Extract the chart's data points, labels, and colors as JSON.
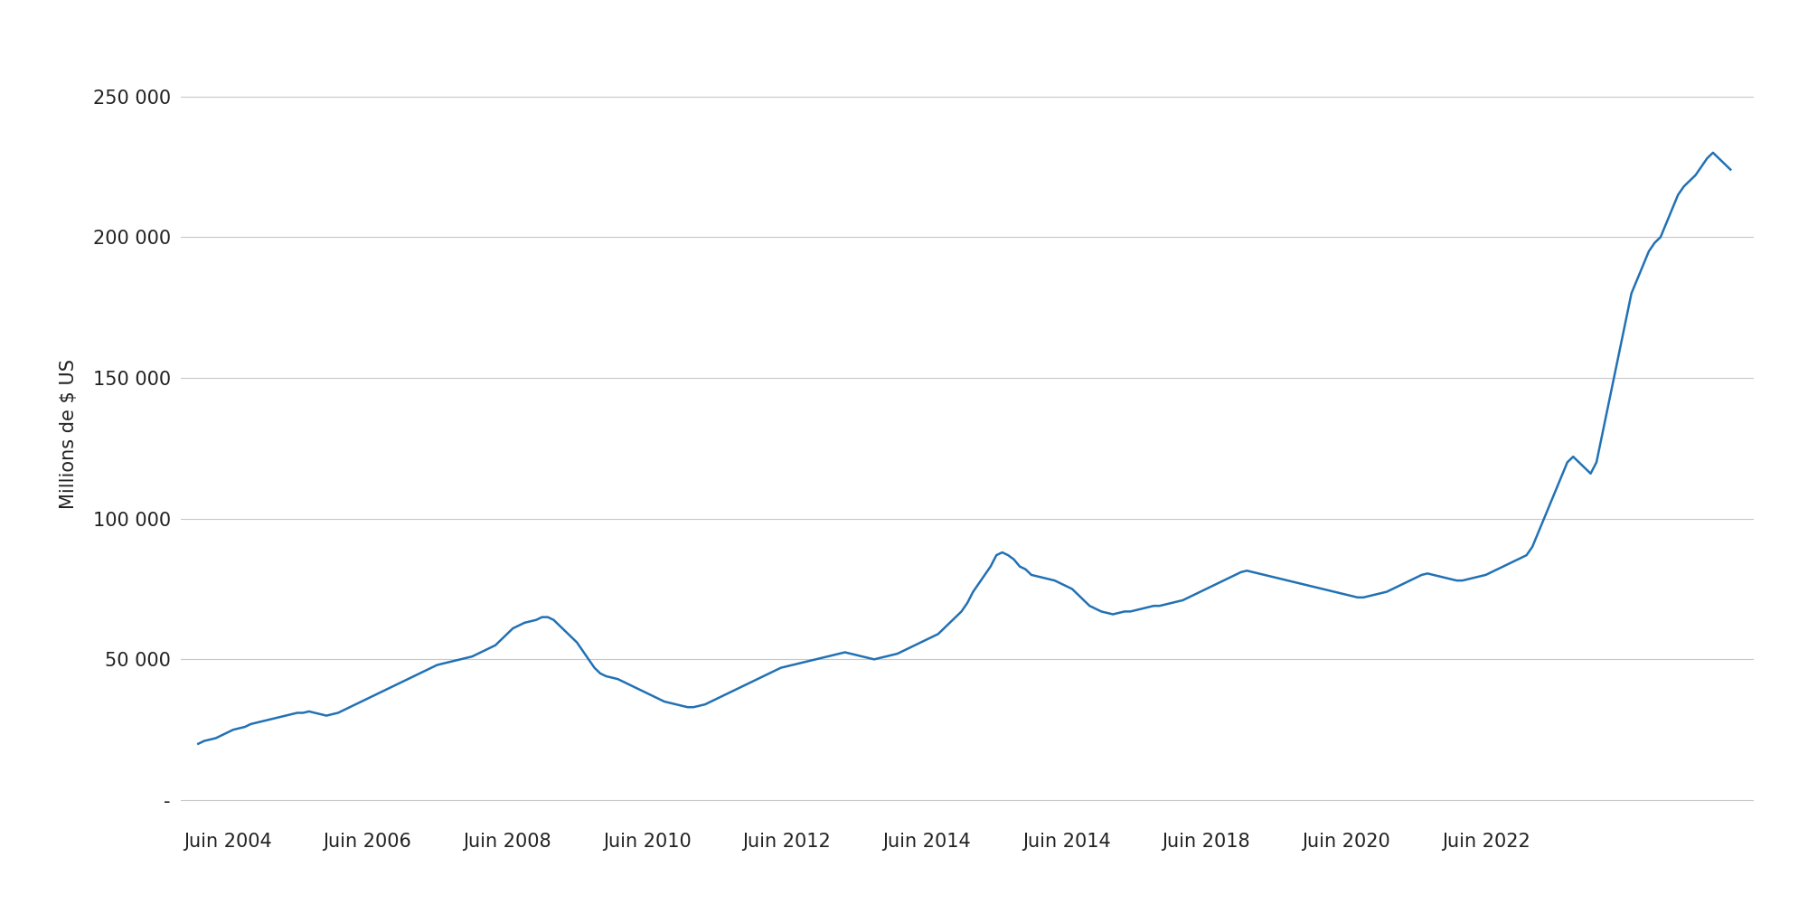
{
  "ylabel": "Millions de $ US",
  "line_color": "#2171b5",
  "background_color": "#ffffff",
  "grid_color": "#c8c8c8",
  "yticks": [
    0,
    50000,
    100000,
    150000,
    200000,
    250000
  ],
  "ytick_labels": [
    "-",
    "50 000",
    "100 000",
    "150 000",
    "200 000",
    "250 000"
  ],
  "ylim": [
    -8000,
    268000
  ],
  "ylabel_fontsize": 15,
  "tick_fontsize": 15,
  "values": [
    20000,
    21000,
    21500,
    22000,
    23000,
    24000,
    25000,
    25500,
    26000,
    27000,
    27500,
    28000,
    28500,
    29000,
    29500,
    30000,
    30500,
    31000,
    31000,
    31500,
    31000,
    30500,
    30000,
    30500,
    31000,
    32000,
    33000,
    34000,
    35000,
    36000,
    37000,
    38000,
    39000,
    40000,
    41000,
    42000,
    43000,
    44000,
    45000,
    46000,
    47000,
    48000,
    48500,
    49000,
    49500,
    50000,
    50500,
    51000,
    52000,
    53000,
    54000,
    55000,
    57000,
    59000,
    61000,
    62000,
    63000,
    63500,
    64000,
    65000,
    65000,
    64000,
    62000,
    60000,
    58000,
    56000,
    53000,
    50000,
    47000,
    45000,
    44000,
    43500,
    43000,
    42000,
    41000,
    40000,
    39000,
    38000,
    37000,
    36000,
    35000,
    34500,
    34000,
    33500,
    33000,
    33000,
    33500,
    34000,
    35000,
    36000,
    37000,
    38000,
    39000,
    40000,
    41000,
    42000,
    43000,
    44000,
    45000,
    46000,
    47000,
    47500,
    48000,
    48500,
    49000,
    49500,
    50000,
    50500,
    51000,
    51500,
    52000,
    52500,
    52000,
    51500,
    51000,
    50500,
    50000,
    50500,
    51000,
    51500,
    52000,
    53000,
    54000,
    55000,
    56000,
    57000,
    58000,
    59000,
    61000,
    63000,
    65000,
    67000,
    70000,
    74000,
    77000,
    80000,
    83000,
    87000,
    88000,
    87000,
    85500,
    83000,
    82000,
    80000,
    79500,
    79000,
    78500,
    78000,
    77000,
    76000,
    75000,
    73000,
    71000,
    69000,
    68000,
    67000,
    66500,
    66000,
    66500,
    67000,
    67000,
    67500,
    68000,
    68500,
    69000,
    69000,
    69500,
    70000,
    70500,
    71000,
    72000,
    73000,
    74000,
    75000,
    76000,
    77000,
    78000,
    79000,
    80000,
    81000,
    81500,
    81000,
    80500,
    80000,
    79500,
    79000,
    78500,
    78000,
    77500,
    77000,
    76500,
    76000,
    75500,
    75000,
    74500,
    74000,
    73500,
    73000,
    72500,
    72000,
    72000,
    72500,
    73000,
    73500,
    74000,
    75000,
    76000,
    77000,
    78000,
    79000,
    80000,
    80500,
    80000,
    79500,
    79000,
    78500,
    78000,
    78000,
    78500,
    79000,
    79500,
    80000,
    81000,
    82000,
    83000,
    84000,
    85000,
    86000,
    87000,
    90000,
    95000,
    100000,
    105000,
    110000,
    115000,
    120000,
    122000,
    120000,
    118000,
    116000,
    120000,
    130000,
    140000,
    150000,
    160000,
    170000,
    180000,
    185000,
    190000,
    195000,
    198000,
    200000,
    205000,
    210000,
    215000,
    218000,
    220000,
    222000,
    225000,
    228000,
    230000,
    228000,
    226000,
    224000
  ],
  "xtick_labels": [
    "Juin 2004",
    "Juin 2006",
    "Juin 2008",
    "Juin 2010",
    "Juin 2012",
    "Juin 2014",
    "Juin 2014",
    "Juin 2018",
    "Juin 2020",
    "Juin 2022"
  ]
}
